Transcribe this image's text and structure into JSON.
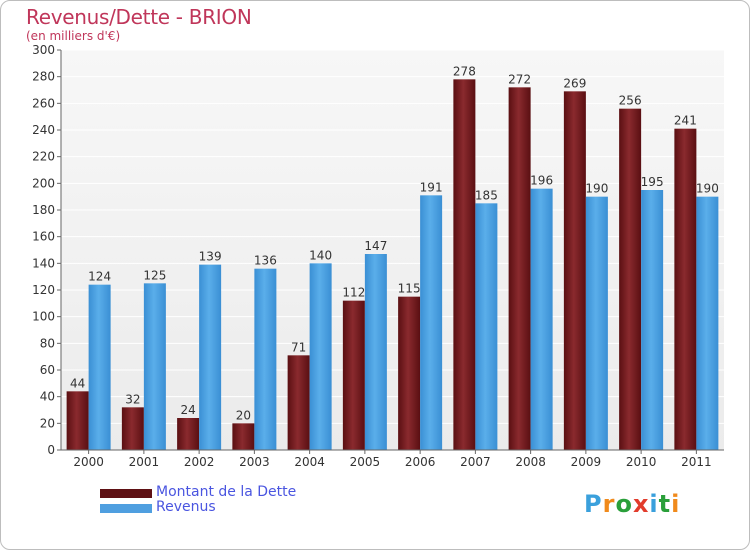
{
  "chart_data": {
    "type": "bar",
    "title": "Revenus/Dette - BRION",
    "subtitle": "(en milliers d'€)",
    "categories": [
      "2000",
      "2001",
      "2002",
      "2003",
      "2004",
      "2005",
      "2006",
      "2007",
      "2008",
      "2009",
      "2010",
      "2011"
    ],
    "series": [
      {
        "name": "Montant de la Dette",
        "color": "#7a1f23",
        "values": [
          44,
          32,
          24,
          20,
          71,
          112,
          115,
          278,
          272,
          269,
          256,
          241
        ]
      },
      {
        "name": "Revenus",
        "color": "#4f9fe0",
        "values": [
          124,
          125,
          139,
          136,
          140,
          147,
          191,
          185,
          196,
          190,
          195,
          190
        ]
      }
    ],
    "ylim": [
      0,
      300
    ],
    "yticks": [
      0,
      20,
      40,
      60,
      80,
      100,
      120,
      140,
      160,
      180,
      200,
      220,
      240,
      260,
      280,
      300
    ],
    "grid": true,
    "legend_position": "bottom-left"
  },
  "legend": {
    "dette_label": "Montant de la Dette",
    "revenus_label": "Revenus"
  },
  "logo": {
    "letters": [
      "P",
      "r",
      "o",
      "x",
      "i",
      "t",
      "i"
    ],
    "colors": [
      "#3aa0dc",
      "#f08a1c",
      "#2a9f3a",
      "#e23c2c",
      "#3aa0dc",
      "#2a9f3a",
      "#f08a1c"
    ]
  }
}
